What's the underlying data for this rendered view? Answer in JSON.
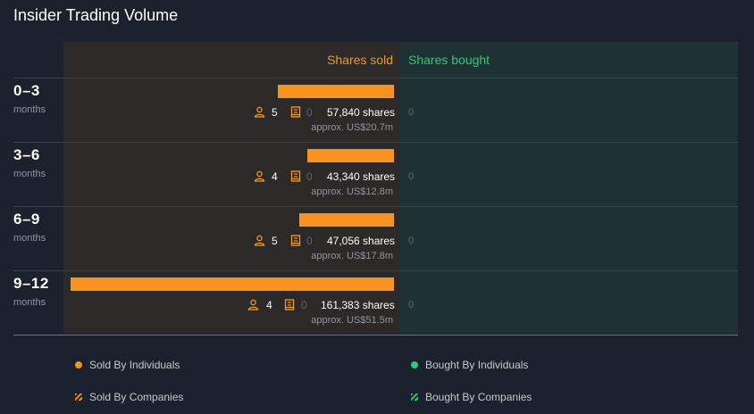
{
  "title": "Insider Trading Volume",
  "headers": {
    "sold": "Shares sold",
    "bought": "Shares bought"
  },
  "colors": {
    "sold": "#f7931e",
    "bought": "#2ccb77",
    "sold_panel": "#2c2a29",
    "bought_panel": "#1e3233"
  },
  "legend": {
    "sold_individuals": "Sold By Individuals",
    "bought_individuals": "Bought By Individuals",
    "sold_companies": "Sold By Companies",
    "bought_companies": "Bought By Companies"
  },
  "chart_data": {
    "type": "bar",
    "categories": [
      "0–3",
      "3–6",
      "6–9",
      "9–12"
    ],
    "category_unit": "months",
    "series": [
      {
        "name": "Shares sold",
        "values": [
          57840,
          43340,
          47056,
          161383
        ]
      },
      {
        "name": "Shares bought",
        "values": [
          0,
          0,
          0,
          0
        ]
      }
    ],
    "rows": [
      {
        "period": "0–3",
        "unit": "months",
        "individuals": "5",
        "companies": "0",
        "shares_label": "57,840 shares",
        "approx": "approx. US$20.7m",
        "bought": "0"
      },
      {
        "period": "3–6",
        "unit": "months",
        "individuals": "4",
        "companies": "0",
        "shares_label": "43,340 shares",
        "approx": "approx. US$12.8m",
        "bought": "0"
      },
      {
        "period": "6–9",
        "unit": "months",
        "individuals": "5",
        "companies": "0",
        "shares_label": "47,056 shares",
        "approx": "approx. US$17.8m",
        "bought": "0"
      },
      {
        "period": "9–12",
        "unit": "months",
        "individuals": "4",
        "companies": "0",
        "shares_label": "161,383 shares",
        "approx": "approx. US$51.5m",
        "bought": "0"
      }
    ]
  }
}
